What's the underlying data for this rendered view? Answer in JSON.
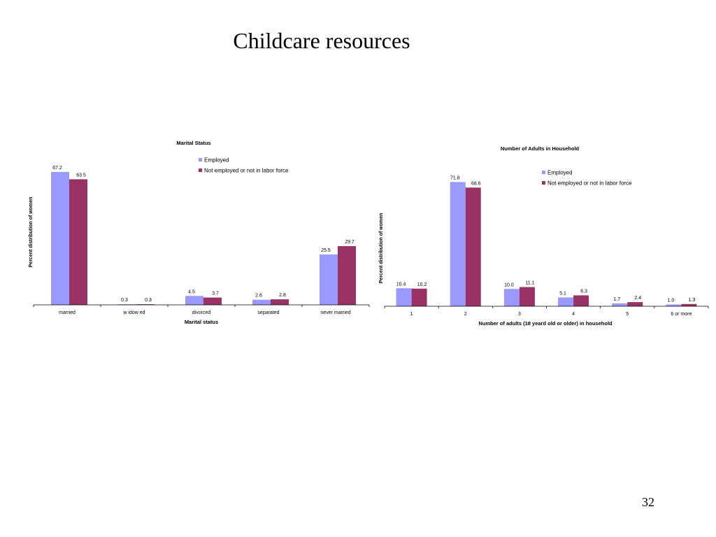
{
  "slide": {
    "title": "Childcare resources",
    "page_number": "32"
  },
  "colors": {
    "employed": "#9999FF",
    "not_employed": "#993366",
    "axis": "#000000"
  },
  "chart_data": [
    {
      "type": "bar",
      "title": "Marital Status",
      "xlabel": "Marital status",
      "ylabel": "Percent distribution of women",
      "categories": [
        "married",
        "w idow ed",
        "divorced",
        "separated",
        "never married"
      ],
      "series": [
        {
          "name": "Employed",
          "values": [
            67.2,
            0.3,
            4.5,
            2.6,
            25.5
          ]
        },
        {
          "name": "Not employed or not in labor force",
          "values": [
            63.5,
            0.3,
            3.7,
            2.8,
            29.7
          ]
        }
      ],
      "data_labels": [
        [
          "67.2",
          "0.3",
          "4.5",
          "2.6",
          "25.5"
        ],
        [
          "63.5",
          "0.3",
          "3.7",
          "2.8",
          "29.7"
        ]
      ],
      "ylim": [
        0,
        70
      ],
      "grid": false,
      "legend": "top-right"
    },
    {
      "type": "bar",
      "title": "Number of Adults in Household",
      "xlabel": "Number of adults (18 yeard old or older) in household",
      "ylabel": "Percent distribution of women",
      "categories": [
        "1",
        "2",
        "3",
        "4",
        "5",
        "6 or more"
      ],
      "series": [
        {
          "name": "Employed",
          "values": [
            10.4,
            71.8,
            10.0,
            5.1,
            1.7,
            1.0
          ]
        },
        {
          "name": "Not employed or not in labor force",
          "values": [
            10.2,
            68.6,
            11.1,
            6.3,
            2.4,
            1.3
          ]
        }
      ],
      "data_labels": [
        [
          "10.4",
          "71.8",
          "10.0",
          "5.1",
          "1.7",
          "1.0"
        ],
        [
          "10.2",
          "68.6",
          "11.1",
          "6.3",
          "2.4",
          "1.3"
        ]
      ],
      "ylim": [
        0,
        78
      ],
      "grid": false,
      "legend": "top-right"
    }
  ]
}
